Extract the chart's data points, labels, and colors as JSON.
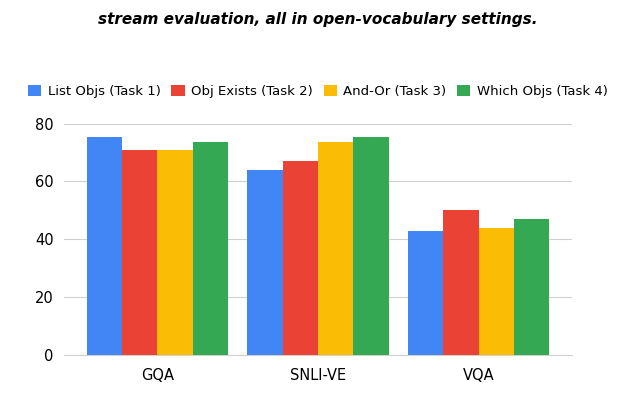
{
  "categories": [
    "GQA",
    "SNLI-VE",
    "VQA"
  ],
  "series": [
    {
      "label": "List Objs (Task 1)",
      "color": "#4285F4",
      "values": [
        75.5,
        64.0,
        43.0
      ]
    },
    {
      "label": "Obj Exists (Task 2)",
      "color": "#EA4335",
      "values": [
        71.0,
        67.0,
        50.0
      ]
    },
    {
      "label": "And-Or (Task 3)",
      "color": "#FBBC05",
      "values": [
        71.0,
        73.5,
        44.0
      ]
    },
    {
      "label": "Which Objs (Task 4)",
      "color": "#34A853",
      "values": [
        73.5,
        75.5,
        47.0
      ]
    }
  ],
  "ylim": [
    0,
    80
  ],
  "yticks": [
    0,
    20,
    40,
    60,
    80
  ],
  "bar_width": 0.22,
  "legend_fontsize": 9.5,
  "tick_fontsize": 10.5,
  "background_color": "#ffffff",
  "grid_color": "#d0d0d0",
  "fig_width": 6.36,
  "fig_height": 3.98,
  "dpi": 100,
  "title_partial": "stream evaluation, all in open-vocabulary settings."
}
